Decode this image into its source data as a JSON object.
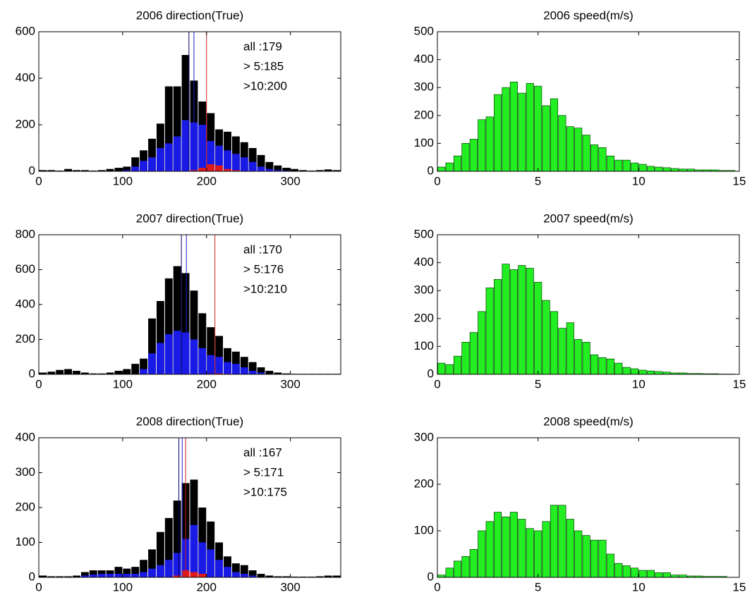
{
  "chart_data": [
    {
      "type": "histogram",
      "title": "2006 direction(True)",
      "bins": [
        0,
        10,
        20,
        30,
        40,
        50,
        60,
        70,
        80,
        90,
        100,
        110,
        120,
        130,
        140,
        150,
        160,
        170,
        180,
        190,
        200,
        210,
        220,
        230,
        240,
        250,
        260,
        270,
        280,
        290,
        300,
        310,
        320,
        330,
        340,
        350,
        360
      ],
      "series": [
        {
          "name": "all",
          "color": "#000000",
          "values": [
            5,
            5,
            3,
            10,
            5,
            5,
            3,
            5,
            10,
            15,
            20,
            60,
            90,
            140,
            205,
            365,
            365,
            500,
            390,
            300,
            250,
            180,
            170,
            150,
            125,
            100,
            70,
            40,
            25,
            15,
            10,
            5,
            3,
            5,
            8,
            5
          ]
        },
        {
          "name": "> 5",
          "color": "#1a1ae6",
          "values": [
            0,
            0,
            0,
            0,
            0,
            0,
            0,
            0,
            0,
            0,
            5,
            20,
            45,
            60,
            100,
            120,
            150,
            220,
            210,
            200,
            130,
            110,
            90,
            75,
            60,
            40,
            20,
            10,
            5,
            3,
            0,
            0,
            0,
            0,
            0,
            0
          ]
        },
        {
          "name": ">10",
          "color": "#e01a1a",
          "values": [
            0,
            0,
            0,
            0,
            0,
            0,
            0,
            0,
            0,
            0,
            0,
            0,
            0,
            0,
            0,
            0,
            0,
            0,
            5,
            15,
            30,
            25,
            10,
            5,
            0,
            0,
            0,
            0,
            0,
            0,
            0,
            0,
            0,
            0,
            0,
            0
          ]
        }
      ],
      "mean_lines": [
        {
          "value": 179,
          "label": "all :179",
          "color": "#000060"
        },
        {
          "value": 185,
          "label": "> 5:185",
          "color": "#2020d0"
        },
        {
          "value": 200,
          "label": ">10:200",
          "color": "#d02020"
        }
      ],
      "xlim": [
        0,
        360
      ],
      "xticks": [
        0,
        100,
        200,
        300
      ],
      "ylim": [
        0,
        600
      ],
      "yticks": [
        0,
        200,
        400,
        600
      ]
    },
    {
      "type": "histogram",
      "title": "2006 speed(m/s)",
      "bins": [
        0,
        0.4,
        0.8,
        1.2,
        1.6,
        2,
        2.4,
        2.8,
        3.2,
        3.6,
        4,
        4.4,
        4.8,
        5.2,
        5.6,
        6,
        6.4,
        6.8,
        7.2,
        7.6,
        8,
        8.4,
        8.8,
        9.2,
        9.6,
        10,
        10.4,
        10.8,
        11.2,
        11.6,
        12,
        12.4,
        12.8,
        13.2,
        13.6,
        14,
        14.4,
        14.8
      ],
      "series": [
        {
          "name": "speed",
          "color": "#22ee22",
          "values": [
            15,
            30,
            55,
            100,
            115,
            185,
            195,
            275,
            300,
            320,
            280,
            315,
            305,
            235,
            260,
            200,
            160,
            155,
            130,
            95,
            85,
            55,
            40,
            40,
            30,
            25,
            18,
            15,
            13,
            10,
            8,
            8,
            5,
            5,
            5,
            3,
            3
          ]
        }
      ],
      "xlim": [
        0,
        15
      ],
      "xticks": [
        0,
        5,
        10,
        15
      ],
      "ylim": [
        0,
        500
      ],
      "yticks": [
        0,
        100,
        200,
        300,
        400,
        500
      ]
    },
    {
      "type": "histogram",
      "title": "2007 direction(True)",
      "bins": [
        0,
        10,
        20,
        30,
        40,
        50,
        60,
        70,
        80,
        90,
        100,
        110,
        120,
        130,
        140,
        150,
        160,
        170,
        180,
        190,
        200,
        210,
        220,
        230,
        240,
        250,
        260,
        270,
        280,
        290,
        300,
        310,
        320,
        330,
        340,
        350,
        360
      ],
      "series": [
        {
          "name": "all",
          "color": "#000000",
          "values": [
            10,
            15,
            25,
            30,
            20,
            10,
            5,
            5,
            10,
            20,
            30,
            60,
            90,
            320,
            420,
            550,
            620,
            580,
            480,
            350,
            270,
            220,
            150,
            130,
            100,
            70,
            40,
            20,
            10,
            5,
            3,
            3,
            3,
            3,
            3,
            3
          ]
        },
        {
          "name": "> 5",
          "color": "#1a1ae6",
          "values": [
            0,
            0,
            0,
            0,
            0,
            0,
            0,
            0,
            0,
            0,
            0,
            0,
            30,
            120,
            180,
            230,
            250,
            240,
            200,
            150,
            110,
            100,
            70,
            60,
            40,
            20,
            10,
            0,
            0,
            0,
            0,
            0,
            0,
            0,
            0,
            0
          ]
        },
        {
          "name": ">10",
          "color": "#e01a1a",
          "values": [
            0,
            0,
            0,
            0,
            0,
            0,
            0,
            0,
            0,
            0,
            0,
            0,
            0,
            0,
            0,
            0,
            0,
            0,
            0,
            0,
            3,
            5,
            3,
            0,
            0,
            0,
            0,
            0,
            0,
            0,
            0,
            0,
            0,
            0,
            0,
            0
          ]
        }
      ],
      "mean_lines": [
        {
          "value": 170,
          "label": "all :170",
          "color": "#000060"
        },
        {
          "value": 176,
          "label": "> 5:176",
          "color": "#2020d0"
        },
        {
          "value": 210,
          "label": ">10:210",
          "color": "#d02020"
        }
      ],
      "xlim": [
        0,
        360
      ],
      "xticks": [
        0,
        100,
        200,
        300
      ],
      "ylim": [
        0,
        800
      ],
      "yticks": [
        0,
        200,
        400,
        600,
        800
      ]
    },
    {
      "type": "histogram",
      "title": "2007 speed(m/s)",
      "bins": [
        0,
        0.4,
        0.8,
        1.2,
        1.6,
        2,
        2.4,
        2.8,
        3.2,
        3.6,
        4,
        4.4,
        4.8,
        5.2,
        5.6,
        6,
        6.4,
        6.8,
        7.2,
        7.6,
        8,
        8.4,
        8.8,
        9.2,
        9.6,
        10,
        10.4,
        10.8,
        11.2,
        11.6,
        12,
        12.4,
        12.8,
        13.2,
        13.6,
        14,
        14.4,
        14.8
      ],
      "series": [
        {
          "name": "speed",
          "color": "#22ee22",
          "values": [
            40,
            35,
            65,
            115,
            150,
            225,
            310,
            340,
            395,
            375,
            390,
            380,
            330,
            265,
            225,
            165,
            185,
            125,
            115,
            70,
            60,
            55,
            40,
            25,
            20,
            15,
            12,
            10,
            8,
            5,
            5,
            3,
            3,
            2,
            2,
            1,
            1
          ]
        }
      ],
      "xlim": [
        0,
        15
      ],
      "xticks": [
        0,
        5,
        10,
        15
      ],
      "ylim": [
        0,
        500
      ],
      "yticks": [
        0,
        100,
        200,
        300,
        400,
        500
      ]
    },
    {
      "type": "histogram",
      "title": "2008  direction(True)",
      "bins": [
        0,
        10,
        20,
        30,
        40,
        50,
        60,
        70,
        80,
        90,
        100,
        110,
        120,
        130,
        140,
        150,
        160,
        170,
        180,
        190,
        200,
        210,
        220,
        230,
        240,
        250,
        260,
        270,
        280,
        290,
        300,
        310,
        320,
        330,
        340,
        350,
        360
      ],
      "series": [
        {
          "name": "all",
          "color": "#000000",
          "values": [
            5,
            3,
            3,
            3,
            5,
            15,
            20,
            20,
            20,
            30,
            25,
            30,
            50,
            80,
            130,
            170,
            220,
            270,
            280,
            200,
            160,
            100,
            60,
            40,
            35,
            20,
            10,
            5,
            3,
            3,
            2,
            2,
            2,
            3,
            5,
            5
          ]
        },
        {
          "name": "> 5",
          "color": "#1a1ae6",
          "values": [
            0,
            0,
            0,
            0,
            0,
            5,
            8,
            10,
            10,
            10,
            10,
            10,
            15,
            25,
            35,
            50,
            70,
            110,
            150,
            100,
            80,
            50,
            30,
            15,
            10,
            5,
            0,
            0,
            0,
            0,
            0,
            0,
            0,
            0,
            0,
            0
          ]
        },
        {
          "name": ">10",
          "color": "#e01a1a",
          "values": [
            0,
            0,
            0,
            0,
            0,
            0,
            0,
            0,
            0,
            0,
            0,
            0,
            0,
            0,
            0,
            0,
            5,
            20,
            15,
            10,
            0,
            0,
            0,
            0,
            0,
            0,
            0,
            0,
            0,
            0,
            0,
            0,
            0,
            0,
            0,
            0
          ]
        }
      ],
      "mean_lines": [
        {
          "value": 167,
          "label": "all :167",
          "color": "#000060"
        },
        {
          "value": 171,
          "label": "> 5:171",
          "color": "#2020d0"
        },
        {
          "value": 175,
          "label": ">10:175",
          "color": "#d02020"
        }
      ],
      "xlim": [
        0,
        360
      ],
      "xticks": [
        0,
        100,
        200,
        300
      ],
      "ylim": [
        0,
        400
      ],
      "yticks": [
        0,
        100,
        200,
        300,
        400
      ]
    },
    {
      "type": "histogram",
      "title": "2008 speed(m/s)",
      "bins": [
        0,
        0.4,
        0.8,
        1.2,
        1.6,
        2,
        2.4,
        2.8,
        3.2,
        3.6,
        4,
        4.4,
        4.8,
        5.2,
        5.6,
        6,
        6.4,
        6.8,
        7.2,
        7.6,
        8,
        8.4,
        8.8,
        9.2,
        9.6,
        10,
        10.4,
        10.8,
        11.2,
        11.6,
        12,
        12.4,
        12.8,
        13.2,
        13.6,
        14,
        14.4,
        14.8
      ],
      "series": [
        {
          "name": "speed",
          "color": "#22ee22",
          "values": [
            5,
            20,
            35,
            45,
            60,
            100,
            120,
            140,
            130,
            140,
            125,
            105,
            100,
            120,
            155,
            155,
            125,
            100,
            90,
            80,
            80,
            50,
            30,
            25,
            20,
            15,
            15,
            10,
            10,
            5,
            5,
            3,
            3,
            2,
            2,
            2,
            0
          ]
        }
      ],
      "xlim": [
        0,
        15
      ],
      "xticks": [
        0,
        5,
        10,
        15
      ],
      "ylim": [
        0,
        300
      ],
      "yticks": [
        0,
        100,
        200,
        300
      ]
    }
  ]
}
